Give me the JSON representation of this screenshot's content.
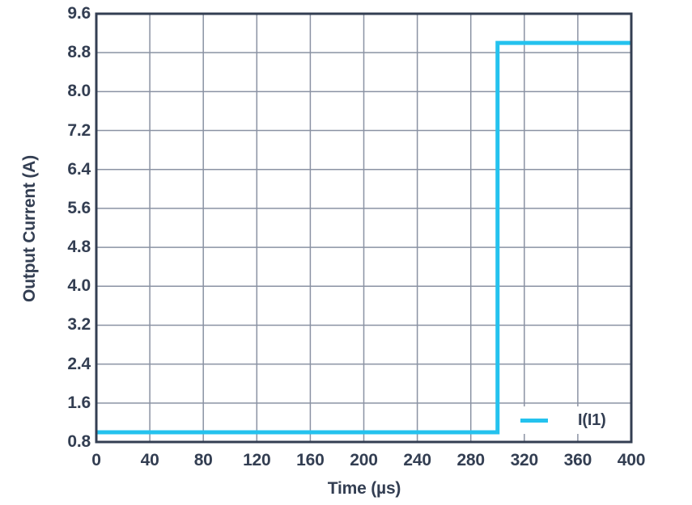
{
  "figure": {
    "background": "#FFFFFF"
  },
  "colors": {
    "axis": "#333E52",
    "grid": "#8A92A3",
    "text": "#333E52",
    "series_cyan": "#24C2EE"
  },
  "chart_data": {
    "type": "line",
    "title": "",
    "xlabel": "Time (µs)",
    "ylabel": "Output Current (A)",
    "xlim": [
      0,
      400
    ],
    "ylim": [
      0.8,
      9.6
    ],
    "xticks": [
      "0",
      "40",
      "80",
      "120",
      "160",
      "200",
      "240",
      "280",
      "320",
      "360",
      "400"
    ],
    "yticks": [
      "0.8",
      "1.6",
      "2.4",
      "3.2",
      "4.0",
      "4.8",
      "5.6",
      "6.4",
      "7.2",
      "8.0",
      "8.8",
      "9.6"
    ],
    "grid": true,
    "legend": {
      "position": "inside-bottom-right",
      "entries": [
        "I(I1)"
      ]
    },
    "series": [
      {
        "name": "I(I1)",
        "color": "#24C2EE",
        "points": [
          [
            0,
            1.0
          ],
          [
            300,
            1.0
          ],
          [
            300,
            9.0
          ],
          [
            400,
            9.0
          ]
        ]
      }
    ]
  }
}
